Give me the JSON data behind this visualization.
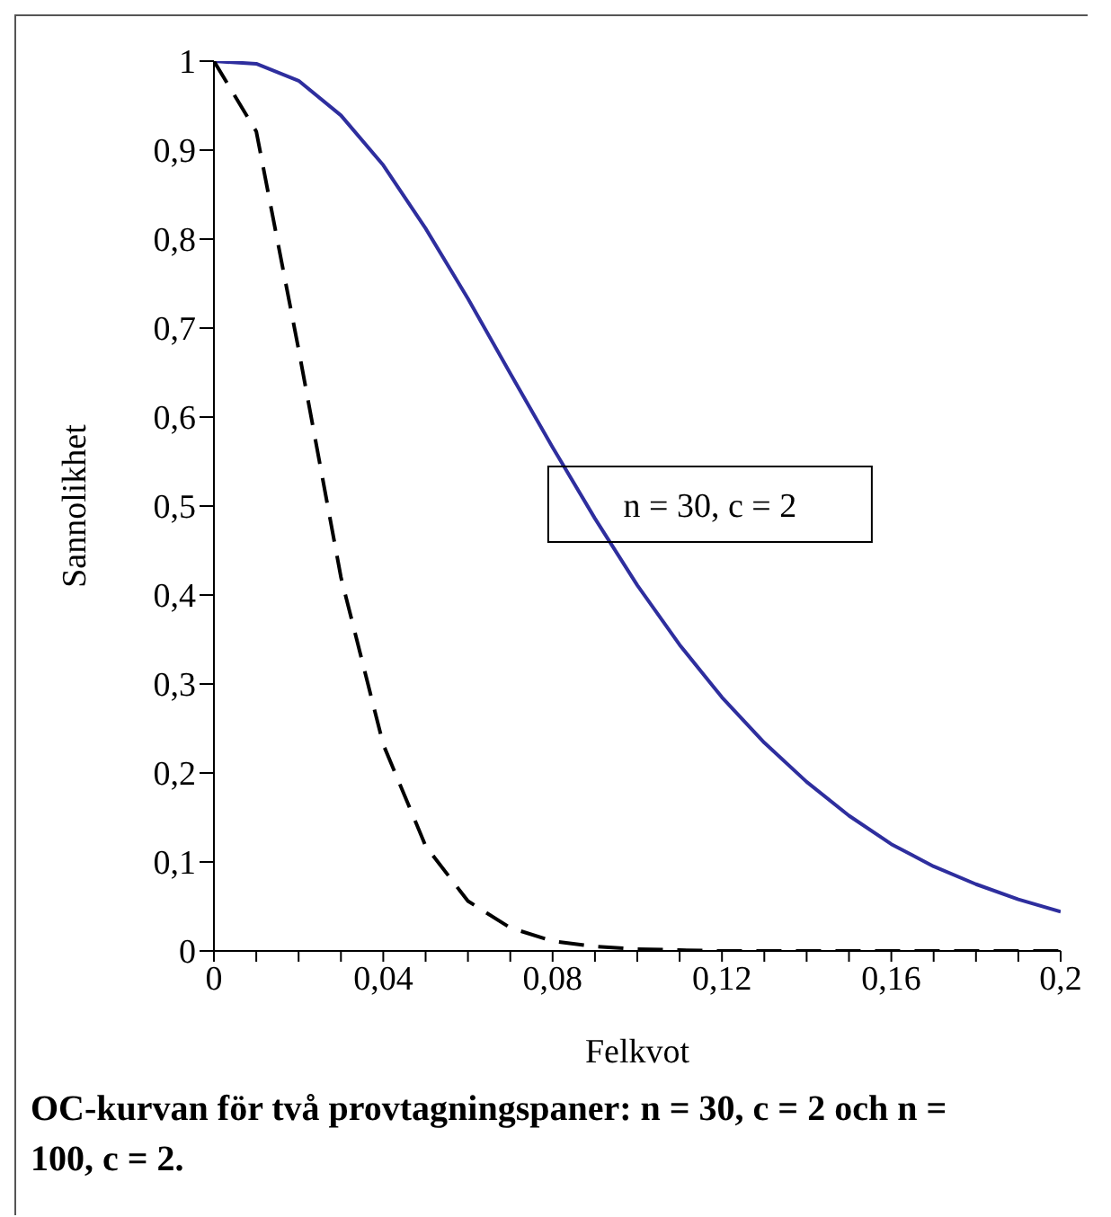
{
  "chart_data": {
    "type": "line",
    "xlabel": "Felkvot",
    "ylabel": "Sannolikhet",
    "x": [
      0,
      0.01,
      0.02,
      0.03,
      0.04,
      0.05,
      0.06,
      0.07,
      0.08,
      0.09,
      0.1,
      0.11,
      0.12,
      0.13,
      0.14,
      0.15,
      0.16,
      0.17,
      0.18,
      0.19,
      0.2
    ],
    "series": [
      {
        "color": "#2e2e9e",
        "line_style": "solid",
        "values": [
          1,
          0.997,
          0.978,
          0.939,
          0.883,
          0.812,
          0.733,
          0.649,
          0.566,
          0.486,
          0.411,
          0.344,
          0.285,
          0.234,
          0.19,
          0.152,
          0.12,
          0.095,
          0.075,
          0.058,
          0.044
        ]
      },
      {
        "color": "#000000",
        "line_style": "dashed",
        "values": [
          1,
          0.921,
          0.676,
          0.42,
          0.232,
          0.118,
          0.056,
          0.026,
          0.011,
          0.005,
          0.002,
          0.001,
          0,
          0,
          0,
          0,
          0,
          0,
          0,
          0,
          0
        ]
      }
    ],
    "xlim": [
      0,
      0.2
    ],
    "xticks": [
      {
        "value": 0,
        "label": "0"
      },
      {
        "value": 0.01,
        "label": null
      },
      {
        "value": 0.02,
        "label": null
      },
      {
        "value": 0.03,
        "label": null
      },
      {
        "value": 0.04,
        "label": "0,04"
      },
      {
        "value": 0.05,
        "label": null
      },
      {
        "value": 0.06,
        "label": null
      },
      {
        "value": 0.07,
        "label": null
      },
      {
        "value": 0.08,
        "label": "0,08"
      },
      {
        "value": 0.09,
        "label": null
      },
      {
        "value": 0.1,
        "label": null
      },
      {
        "value": 0.11,
        "label": null
      },
      {
        "value": 0.12,
        "label": "0,12"
      },
      {
        "value": 0.13,
        "label": null
      },
      {
        "value": 0.14,
        "label": null
      },
      {
        "value": 0.15,
        "label": null
      },
      {
        "value": 0.16,
        "label": "0,16"
      },
      {
        "value": 0.17,
        "label": null
      },
      {
        "value": 0.18,
        "label": null
      },
      {
        "value": 0.19,
        "label": null
      },
      {
        "value": 0.2,
        "label": "0,2"
      }
    ],
    "ylim": [
      0,
      1
    ],
    "yticks": [
      0,
      {
        "value": 0.1,
        "label": "0,1"
      },
      {
        "value": 0.2,
        "label": "0,2"
      },
      {
        "value": 0.3,
        "label": "0,3"
      },
      {
        "value": 0.4,
        "label": "0,4"
      },
      {
        "value": 0.5,
        "label": "0,5"
      },
      {
        "value": 0.6,
        "label": "0,6"
      },
      {
        "value": 0.7,
        "label": "0,7"
      },
      {
        "value": 0.8,
        "label": "0,8"
      },
      {
        "value": 0.9,
        "label": "0,9"
      },
      1
    ],
    "grid": false,
    "legend": false,
    "marker": "none",
    "annotations": [
      {
        "text": "n = 30, c = 2",
        "x": 0.09,
        "y": 0.5
      },
      "OC-kurvan för två provtagningspaner: n = 30, c = 2 och n = 100, c = 2."
    ]
  }
}
